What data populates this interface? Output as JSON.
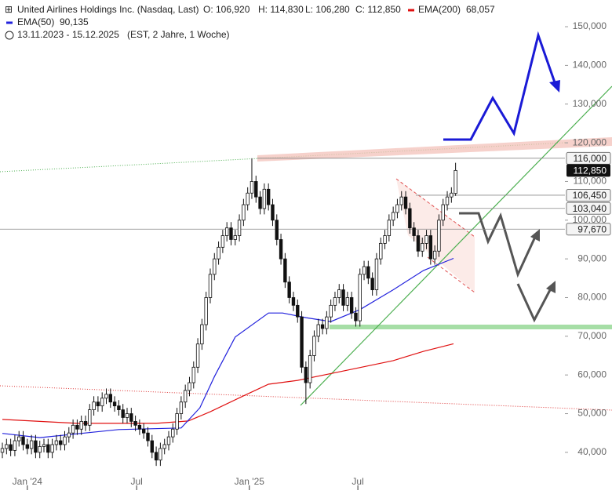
{
  "chart_data": {
    "type": "candlestick",
    "title": "United Airlines Holdings Inc. (Nasdaq, Last)",
    "ohlc_texts": [
      "O: 106,920",
      "H: 114,830",
      "L: 106,280",
      "C: 112,850"
    ],
    "period": "13.11.2023 - 15.12.2025",
    "period_note": "(EST, 2 Jahre, 1 Woche)",
    "ohlc": {
      "open": [
        40,
        41,
        42,
        40.5,
        43,
        44,
        42,
        41,
        43,
        40,
        41.5,
        42,
        40,
        42,
        43,
        42,
        44,
        45,
        47,
        46,
        48,
        47,
        51,
        53,
        52,
        54,
        55,
        53,
        52,
        51,
        49,
        50,
        48,
        47,
        46,
        45,
        43,
        40,
        38,
        41,
        42,
        44,
        46,
        50,
        53,
        56,
        58,
        62,
        68,
        73,
        80,
        86,
        90,
        93,
        96,
        98,
        95,
        96,
        100,
        104,
        107,
        110,
        106,
        103,
        108,
        104,
        100,
        95,
        90,
        84,
        80,
        78,
        75,
        62,
        58,
        65,
        70,
        73,
        72,
        75,
        78,
        80,
        82,
        78,
        80,
        76,
        74,
        86,
        88,
        85,
        82,
        90,
        94,
        96,
        100,
        102,
        104,
        106,
        103,
        98,
        96,
        92,
        94,
        96,
        90,
        92,
        100,
        104,
        106,
        106.92
      ],
      "high": [
        42.5,
        43.5,
        43.5,
        44.5,
        45.5,
        45.5,
        43.5,
        44.5,
        44.5,
        43,
        43.5,
        43.5,
        43.5,
        44.5,
        44.5,
        45.5,
        46.5,
        48.5,
        48.5,
        49.5,
        49.5,
        52.5,
        54.5,
        54.5,
        55.5,
        56.5,
        56.5,
        54.5,
        53.5,
        52.5,
        51.5,
        51.5,
        49.5,
        48.5,
        47.5,
        46.5,
        44.5,
        41.5,
        42.5,
        43.5,
        45.5,
        47.5,
        51.5,
        54.5,
        57.5,
        59.5,
        63.5,
        69.5,
        74.5,
        81.5,
        87.5,
        91.5,
        94.5,
        97.5,
        99.5,
        99.5,
        97.5,
        101.5,
        105.5,
        108.5,
        116,
        111.5,
        107.5,
        109.5,
        109.5,
        105.5,
        101.5,
        96.5,
        91.5,
        85.5,
        81.5,
        79.5,
        76.5,
        63.5,
        66.5,
        71.5,
        74.5,
        74.5,
        76.5,
        79.5,
        81.5,
        83.5,
        83.5,
        81.5,
        81.5,
        77.5,
        87.5,
        89.5,
        89.5,
        86.5,
        91.5,
        95.5,
        97.5,
        101.5,
        103.5,
        105.5,
        107.5,
        107.5,
        104.5,
        99.5,
        97.5,
        95.5,
        97.5,
        97.5,
        93.5,
        101.5,
        105.5,
        107.5,
        108.5,
        114.83
      ],
      "low": [
        38.5,
        39.5,
        39,
        39,
        41.5,
        40.5,
        39.5,
        39.5,
        38.5,
        38.5,
        40,
        38.5,
        38.5,
        40.5,
        40.5,
        40.5,
        42.5,
        43.5,
        44.5,
        44.5,
        45.5,
        45.5,
        49.5,
        50.5,
        50.5,
        52.5,
        51.5,
        50.5,
        49.5,
        47.5,
        47.5,
        46.5,
        45.5,
        44.5,
        43.5,
        41.5,
        38.5,
        36.5,
        36.5,
        39.5,
        40.5,
        42.5,
        44.5,
        48.5,
        51.5,
        54.5,
        56.5,
        60.5,
        66.5,
        71.5,
        78.5,
        84.5,
        88.5,
        91.5,
        94.5,
        93.5,
        93.5,
        94.5,
        98.5,
        102.5,
        105.5,
        104.5,
        101.5,
        101.5,
        102.5,
        98.5,
        93.5,
        88.5,
        82.5,
        78.5,
        76.5,
        73.5,
        60.5,
        52.5,
        56.5,
        63.5,
        68.5,
        70.5,
        70.5,
        73.5,
        76.5,
        78.5,
        76.5,
        76.5,
        74.5,
        72.5,
        72.5,
        84.5,
        83.5,
        80.5,
        80.5,
        88.5,
        92.5,
        94.5,
        98.5,
        100.5,
        102.5,
        101.5,
        96.5,
        94.5,
        90.5,
        90.5,
        92.5,
        88.5,
        88.5,
        90.5,
        98.5,
        102.5,
        104.5,
        106.28
      ],
      "close": [
        41,
        42,
        40.5,
        43,
        44,
        42,
        41,
        43,
        40,
        41.5,
        42,
        40,
        42,
        43,
        42,
        44,
        45,
        47,
        46,
        48,
        47,
        51,
        53,
        52,
        54,
        55,
        53,
        52,
        51,
        49,
        50,
        48,
        47,
        46,
        45,
        43,
        40,
        38,
        41,
        42,
        44,
        46,
        50,
        53,
        56,
        58,
        62,
        68,
        73,
        80,
        86,
        90,
        93,
        96,
        98,
        95,
        96,
        100,
        104,
        107,
        110,
        106,
        103,
        108,
        104,
        100,
        95,
        90,
        84,
        80,
        78,
        75,
        62,
        58,
        65,
        70,
        73,
        72,
        75,
        78,
        80,
        82,
        78,
        80,
        76,
        74,
        86,
        88,
        85,
        82,
        90,
        94,
        96,
        100,
        102,
        104,
        106,
        103,
        98,
        96,
        92,
        94,
        96,
        90,
        92,
        100,
        104,
        106,
        107,
        112.85
      ]
    },
    "series": [
      {
        "name": "EMA(200)",
        "color": "#e01010",
        "value_label": "68,057",
        "x": [
          0,
          18,
          37,
          44.7,
          50,
          58,
          64,
          71,
          80.6,
          94,
          101.3,
          108.5
        ],
        "values": [
          48.5,
          47.5,
          47.5,
          48.1,
          50.5,
          54.6,
          57.6,
          58.6,
          60.7,
          63.7,
          66.1,
          68.057
        ]
      },
      {
        "name": "EMA(50)",
        "color": "#2222dd",
        "value_label": "90,135",
        "x": [
          0,
          9,
          28,
          43,
          47.5,
          51,
          56,
          64,
          67.4,
          73,
          79,
          86,
          94,
          101.3,
          108.5
        ],
        "values": [
          44.9,
          43.8,
          45.9,
          46.3,
          51.5,
          59.6,
          69.8,
          76,
          76,
          74.8,
          73.8,
          76.9,
          82,
          87,
          90.135
        ]
      }
    ],
    "price_lines": [
      {
        "value": 116,
        "label": "116,000"
      },
      {
        "value": 106.45,
        "label": "106,450"
      },
      {
        "value": 103.04,
        "label": "103,040"
      },
      {
        "value": 97.67,
        "label": "97,670"
      }
    ],
    "last_price": {
      "value": 112.85,
      "label": "112,850"
    },
    "xlim": [
      -0.57,
      135.3
    ],
    "xticks": [
      {
        "value": 6,
        "label": "Jan '24"
      },
      {
        "value": 32.3,
        "label": "Jul"
      },
      {
        "value": 59.4,
        "label": "Jan '25"
      },
      {
        "value": 85.5,
        "label": "Jul"
      }
    ],
    "ylim": [
      34.3,
      156.9
    ],
    "yticks": [
      {
        "value": 40,
        "label": "40,000"
      },
      {
        "value": 50,
        "label": "50,000"
      },
      {
        "value": 60,
        "label": "60,000"
      },
      {
        "value": 70,
        "label": "70,000"
      },
      {
        "value": 80,
        "label": "80,000"
      },
      {
        "value": 90,
        "label": "90,000"
      },
      {
        "value": 100,
        "label": "100,000"
      },
      {
        "value": 110,
        "label": "110,000"
      },
      {
        "value": 120,
        "label": "120,000"
      },
      {
        "value": 130,
        "label": "130,000"
      },
      {
        "value": 140,
        "label": "140,000"
      },
      {
        "value": 150,
        "label": "150,000"
      }
    ],
    "up_color": "#ffffff",
    "down_color": "#111111"
  }
}
